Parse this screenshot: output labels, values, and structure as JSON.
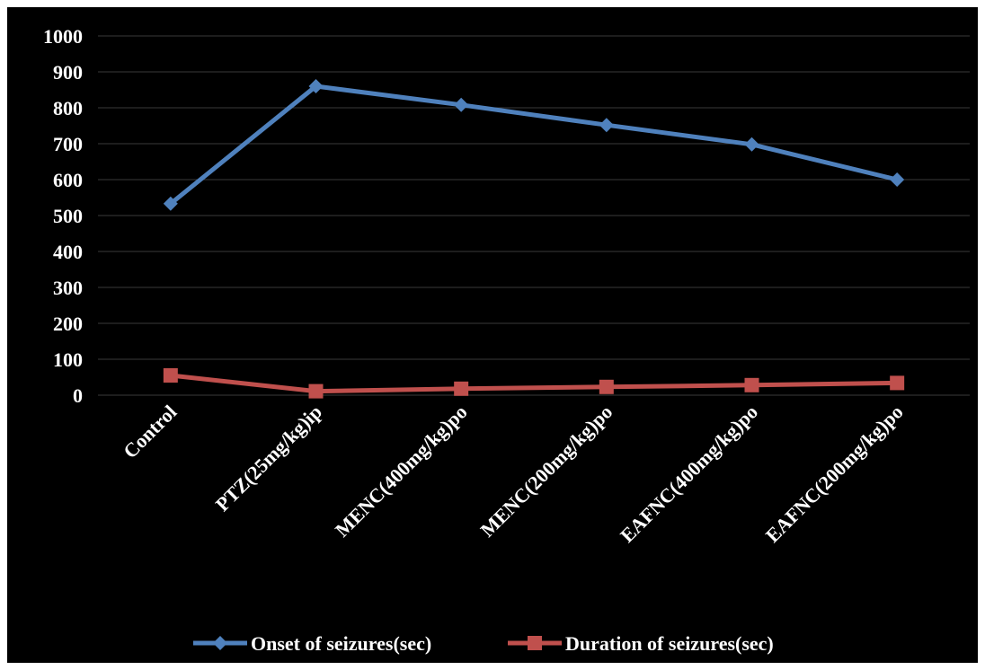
{
  "chart_data": {
    "type": "line",
    "categories": [
      "Control",
      "PTZ(25mg/kg)ip",
      "MENC(400mg/kg)po",
      "MENC(200mg/kg)po",
      "EAFNC(400mg/kg)po",
      "EAFNC(200mg/kg)po"
    ],
    "series": [
      {
        "name": "Onset of seizures(sec)",
        "values": [
          533,
          860,
          808,
          752,
          698,
          600
        ],
        "color": "#4f81bd",
        "marker": "diamond"
      },
      {
        "name": "Duration of seizures(sec)",
        "values": [
          55,
          11,
          18,
          23,
          28,
          34
        ],
        "color": "#c0504d",
        "marker": "square"
      }
    ],
    "yticks": [
      "0",
      "100",
      "200",
      "300",
      "400",
      "500",
      "600",
      "700",
      "800",
      "900",
      "1000"
    ],
    "ylim": [
      0,
      1000
    ],
    "grid": true,
    "legend_position": "bottom",
    "background_color": "#000000",
    "text_color": "#ffffff",
    "grid_color": "#3a3a3a",
    "title": "",
    "xlabel": "",
    "ylabel": ""
  }
}
